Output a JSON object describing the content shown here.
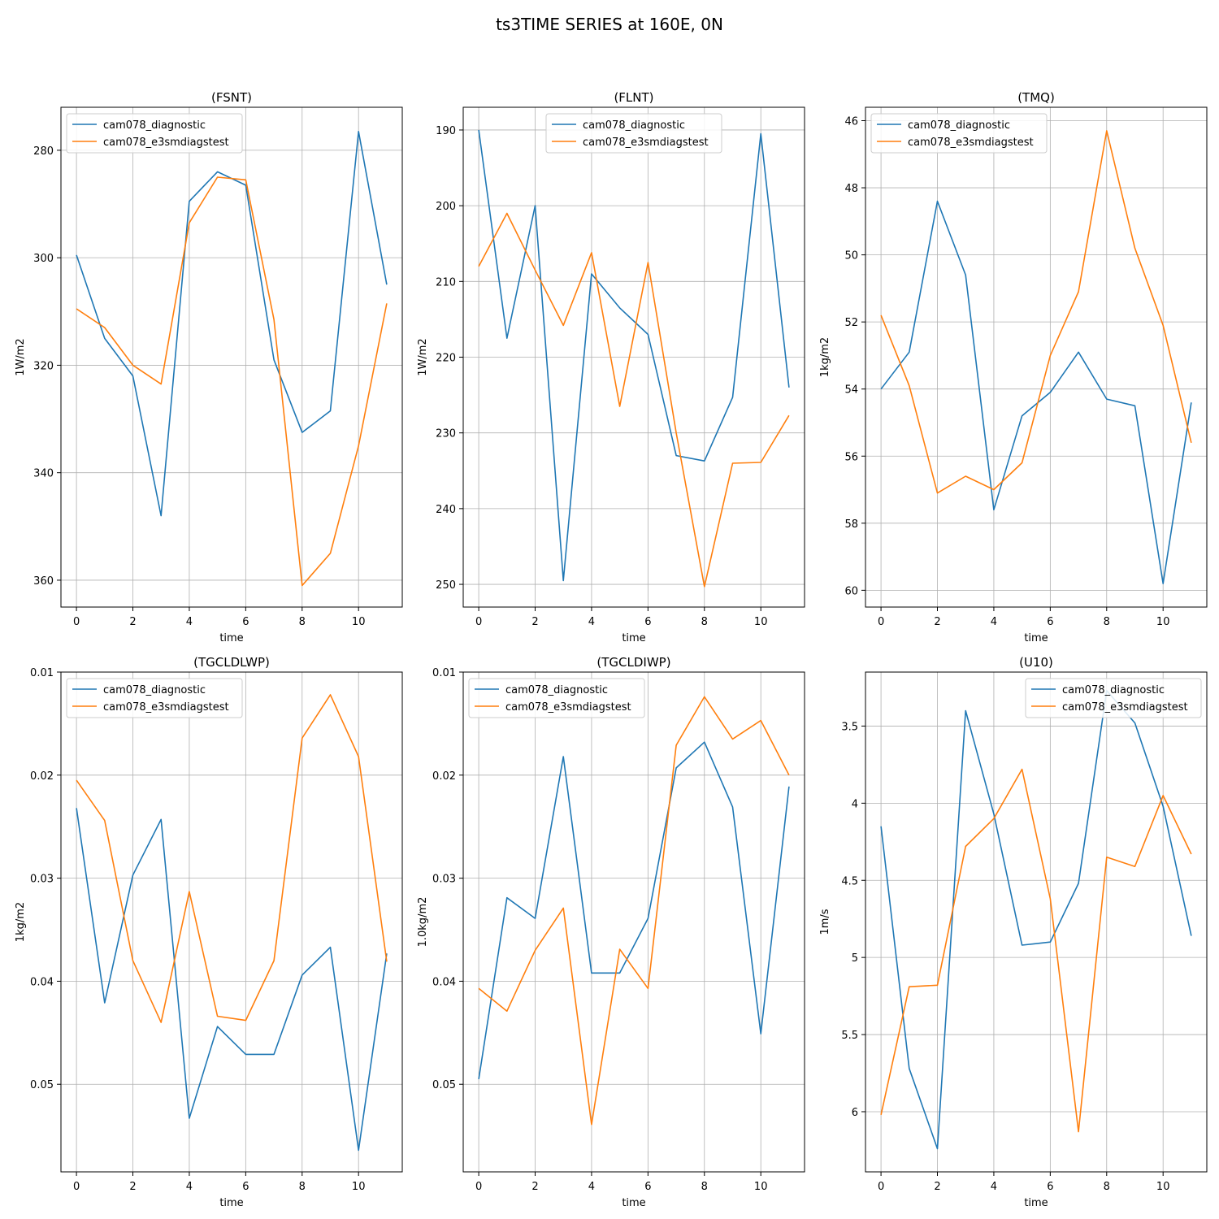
{
  "figure": {
    "title": "ts3TIME SERIES at 160E, 0N"
  },
  "colors": {
    "series_1": "#1f77b4",
    "series_2": "#ff7f0e",
    "grid": "#b0b0b0",
    "axes": "#000000"
  },
  "chart_data": [
    {
      "type": "line",
      "title": "(FSNT)",
      "xlabel": "time",
      "ylabel": "1W/m2",
      "xlim": [
        -0.55,
        11.55
      ],
      "ylim": [
        365,
        272
      ],
      "y_inverted": true,
      "xticks": [
        0,
        2,
        4,
        6,
        8,
        10
      ],
      "yticks": [
        280,
        300,
        320,
        340,
        360
      ],
      "grid": true,
      "legend": "upper-left",
      "x": [
        0,
        1,
        2,
        3,
        4,
        5,
        6,
        7,
        8,
        9,
        10,
        11
      ],
      "series": [
        {
          "name": "cam078_diagnostic",
          "values": [
            299.5,
            315,
            322,
            348,
            289.5,
            284,
            286.5,
            319,
            332.5,
            328.5,
            276.5,
            305
          ]
        },
        {
          "name": "cam078_e3smdiagstest",
          "values": [
            309.5,
            313,
            320,
            323.5,
            293.5,
            285,
            285.5,
            311.5,
            361,
            355,
            335,
            308.5
          ]
        }
      ]
    },
    {
      "type": "line",
      "title": "(FLNT)",
      "xlabel": "time",
      "ylabel": "1W/m2",
      "xlim": [
        -0.55,
        11.55
      ],
      "ylim": [
        253,
        187
      ],
      "y_inverted": true,
      "xticks": [
        0,
        2,
        4,
        6,
        8,
        10
      ],
      "yticks": [
        190,
        200,
        210,
        220,
        230,
        240,
        250
      ],
      "grid": true,
      "legend": "upper-center",
      "x": [
        0,
        1,
        2,
        3,
        4,
        5,
        6,
        7,
        8,
        9,
        10,
        11
      ],
      "series": [
        {
          "name": "cam078_diagnostic",
          "values": [
            190,
            217.5,
            200,
            249.5,
            209,
            213.5,
            217,
            233,
            233.7,
            225.3,
            190.5,
            224
          ]
        },
        {
          "name": "cam078_e3smdiagstest",
          "values": [
            208,
            201,
            208.5,
            215.8,
            206.2,
            226.5,
            207.5,
            230,
            250.3,
            234,
            233.9,
            227.7
          ]
        }
      ]
    },
    {
      "type": "line",
      "title": "(TMQ)",
      "xlabel": "time",
      "ylabel": "1kg/m2",
      "xlim": [
        -0.55,
        11.55
      ],
      "ylim": [
        60.5,
        45.6
      ],
      "y_inverted": true,
      "xticks": [
        0,
        2,
        4,
        6,
        8,
        10
      ],
      "yticks": [
        46,
        48,
        50,
        52,
        54,
        56,
        58,
        60
      ],
      "grid": true,
      "legend": "upper-left",
      "x": [
        0,
        1,
        2,
        3,
        4,
        5,
        6,
        7,
        8,
        9,
        10,
        11
      ],
      "series": [
        {
          "name": "cam078_diagnostic",
          "values": [
            54,
            52.9,
            48.4,
            50.6,
            57.6,
            54.8,
            54.1,
            52.9,
            54.3,
            54.5,
            59.8,
            54.4
          ]
        },
        {
          "name": "cam078_e3smdiagstest",
          "values": [
            51.8,
            53.9,
            57.1,
            56.6,
            57,
            56.2,
            53,
            51.1,
            46.3,
            49.8,
            52.1,
            55.6
          ]
        }
      ]
    },
    {
      "type": "line",
      "title": "(TGCLDLWP)",
      "xlabel": "time",
      "ylabel": "1kg/m2",
      "xlim": [
        -0.55,
        11.55
      ],
      "ylim": [
        0.0585,
        0.01
      ],
      "y_inverted": true,
      "xticks": [
        0,
        2,
        4,
        6,
        8,
        10
      ],
      "yticks": [
        0.01,
        0.02,
        0.03,
        0.04,
        0.05
      ],
      "grid": true,
      "legend": "upper-left",
      "x": [
        0,
        1,
        2,
        3,
        4,
        5,
        6,
        7,
        8,
        9,
        10,
        11
      ],
      "series": [
        {
          "name": "cam078_diagnostic",
          "values": [
            0.0232,
            0.0421,
            0.0297,
            0.0243,
            0.0533,
            0.0444,
            0.0471,
            0.0471,
            0.0394,
            0.0367,
            0.0564,
            0.0373
          ]
        },
        {
          "name": "cam078_e3smdiagstest",
          "values": [
            0.0205,
            0.0244,
            0.038,
            0.044,
            0.0313,
            0.0434,
            0.0438,
            0.038,
            0.0164,
            0.0122,
            0.0182,
            0.0381
          ]
        }
      ]
    },
    {
      "type": "line",
      "title": "(TGCLDIWP)",
      "xlabel": "time",
      "ylabel": "1.0kg/m2",
      "xlim": [
        -0.55,
        11.55
      ],
      "ylim": [
        0.0585,
        0.01
      ],
      "y_inverted": true,
      "xticks": [
        0,
        2,
        4,
        6,
        8,
        10
      ],
      "yticks": [
        0.01,
        0.02,
        0.03,
        0.04,
        0.05
      ],
      "grid": true,
      "legend": "upper-left",
      "x": [
        0,
        1,
        2,
        3,
        4,
        5,
        6,
        7,
        8,
        9,
        10,
        11
      ],
      "series": [
        {
          "name": "cam078_diagnostic",
          "values": [
            0.0495,
            0.0319,
            0.0339,
            0.0182,
            0.0392,
            0.0392,
            0.0339,
            0.0193,
            0.0168,
            0.0231,
            0.0451,
            0.0211
          ]
        },
        {
          "name": "cam078_e3smdiagstest",
          "values": [
            0.0407,
            0.0429,
            0.037,
            0.0329,
            0.0539,
            0.0369,
            0.0407,
            0.0171,
            0.0124,
            0.0165,
            0.0147,
            0.02
          ]
        }
      ]
    },
    {
      "type": "line",
      "title": "(U10)",
      "xlabel": "time",
      "ylabel": "1m/s",
      "xlim": [
        -0.55,
        11.55
      ],
      "ylim": [
        6.39,
        3.15
      ],
      "y_inverted": true,
      "xticks": [
        0,
        2,
        4,
        6,
        8,
        10
      ],
      "yticks": [
        3.5,
        4.0,
        4.5,
        5.0,
        5.5,
        6.0
      ],
      "grid": true,
      "legend": "upper-right",
      "x": [
        0,
        1,
        2,
        3,
        4,
        5,
        6,
        7,
        8,
        9,
        10,
        11
      ],
      "series": [
        {
          "name": "cam078_diagnostic",
          "values": [
            4.15,
            5.72,
            6.24,
            3.4,
            4.07,
            4.92,
            4.9,
            4.52,
            3.27,
            3.48,
            4.02,
            4.86
          ]
        },
        {
          "name": "cam078_e3smdiagstest",
          "values": [
            6.02,
            5.19,
            5.18,
            4.28,
            4.1,
            3.78,
            4.62,
            6.13,
            4.35,
            4.41,
            3.95,
            4.33
          ]
        }
      ]
    }
  ]
}
